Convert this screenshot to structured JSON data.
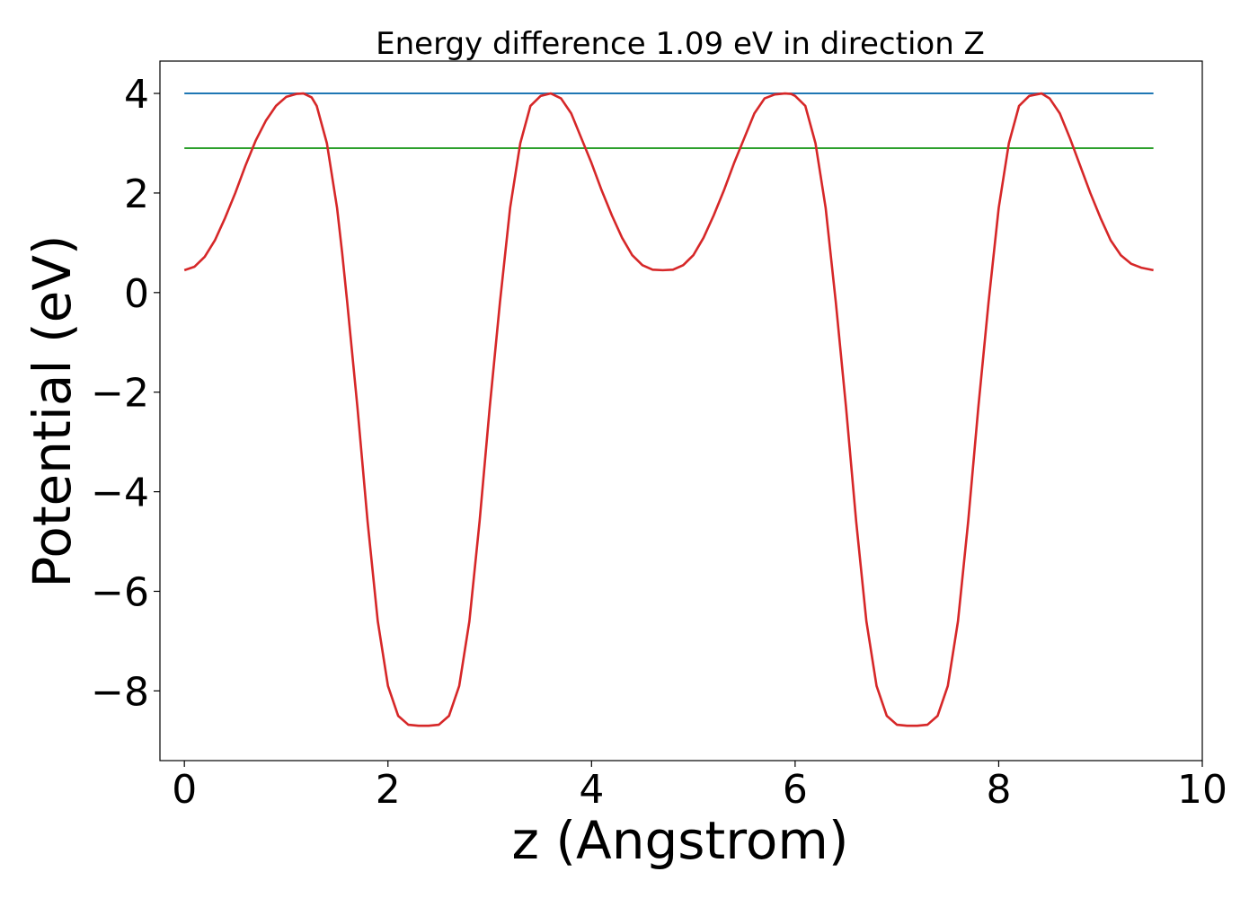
{
  "chart_data": {
    "type": "line",
    "title": "Energy difference 1.09 eV in direction Z",
    "xlabel": "z (Angstrom)",
    "ylabel": "Potential (eV)",
    "xlim": [
      -0.24,
      10.0
    ],
    "ylim": [
      -9.4,
      4.65
    ],
    "x_ticks": [
      0,
      2,
      4,
      6,
      8,
      10
    ],
    "x_tick_labels": [
      "0",
      "2",
      "4",
      "6",
      "8",
      "10"
    ],
    "y_ticks": [
      4,
      2,
      0,
      -2,
      -4,
      -6,
      -8
    ],
    "y_tick_labels": [
      "4",
      "2",
      "0",
      "−2",
      "−4",
      "−6",
      "−8"
    ],
    "grid": false,
    "series": [
      {
        "color": "#1f77b4",
        "x": [
          0,
          9.52
        ],
        "y": [
          4.0,
          4.0
        ]
      },
      {
        "color": "#2ca02c",
        "x": [
          0,
          9.52
        ],
        "y": [
          2.9,
          2.9
        ]
      },
      {
        "color": "#d62728",
        "x": [
          0,
          0.1,
          0.2,
          0.3,
          0.4,
          0.5,
          0.6,
          0.7,
          0.8,
          0.9,
          1.0,
          1.1,
          1.17,
          1.25,
          1.3,
          1.4,
          1.5,
          1.55,
          1.6,
          1.7,
          1.8,
          1.9,
          2.0,
          2.1,
          2.2,
          2.3,
          2.4,
          2.5,
          2.6,
          2.7,
          2.8,
          2.9,
          3.0,
          3.1,
          3.2,
          3.3,
          3.4,
          3.5,
          3.6,
          3.7,
          3.8,
          3.9,
          4.0,
          4.1,
          4.2,
          4.3,
          4.4,
          4.5,
          4.6,
          4.7,
          4.8,
          4.9,
          5.0,
          5.1,
          5.2,
          5.3,
          5.4,
          5.5,
          5.6,
          5.7,
          5.8,
          5.9,
          5.96,
          6.0,
          6.1,
          6.2,
          6.3,
          6.4,
          6.5,
          6.6,
          6.7,
          6.8,
          6.9,
          7.0,
          7.1,
          7.2,
          7.3,
          7.4,
          7.5,
          7.6,
          7.7,
          7.8,
          7.9,
          8.0,
          8.1,
          8.2,
          8.3,
          8.42,
          8.5,
          8.6,
          8.7,
          8.8,
          8.9,
          9.0,
          9.1,
          9.2,
          9.3,
          9.4,
          9.52
        ],
        "y": [
          0.45,
          0.52,
          0.72,
          1.05,
          1.5,
          2.0,
          2.55,
          3.05,
          3.45,
          3.75,
          3.93,
          3.99,
          4.0,
          3.92,
          3.75,
          3.0,
          1.7,
          0.8,
          -0.2,
          -2.3,
          -4.6,
          -6.6,
          -7.9,
          -8.5,
          -8.68,
          -8.7,
          -8.7,
          -8.68,
          -8.5,
          -7.9,
          -6.6,
          -4.6,
          -2.3,
          -0.2,
          1.7,
          3.0,
          3.75,
          3.95,
          4.0,
          3.9,
          3.6,
          3.1,
          2.6,
          2.05,
          1.55,
          1.1,
          0.75,
          0.55,
          0.46,
          0.45,
          0.46,
          0.55,
          0.75,
          1.1,
          1.55,
          2.05,
          2.6,
          3.1,
          3.6,
          3.9,
          3.98,
          4.0,
          3.99,
          3.95,
          3.75,
          3.0,
          1.7,
          -0.2,
          -2.3,
          -4.6,
          -6.6,
          -7.9,
          -8.5,
          -8.68,
          -8.7,
          -8.7,
          -8.68,
          -8.5,
          -7.9,
          -6.6,
          -4.6,
          -2.3,
          -0.2,
          1.7,
          3.0,
          3.75,
          3.95,
          4.0,
          3.9,
          3.6,
          3.1,
          2.55,
          2.0,
          1.5,
          1.05,
          0.75,
          0.58,
          0.5,
          0.45
        ]
      }
    ]
  }
}
